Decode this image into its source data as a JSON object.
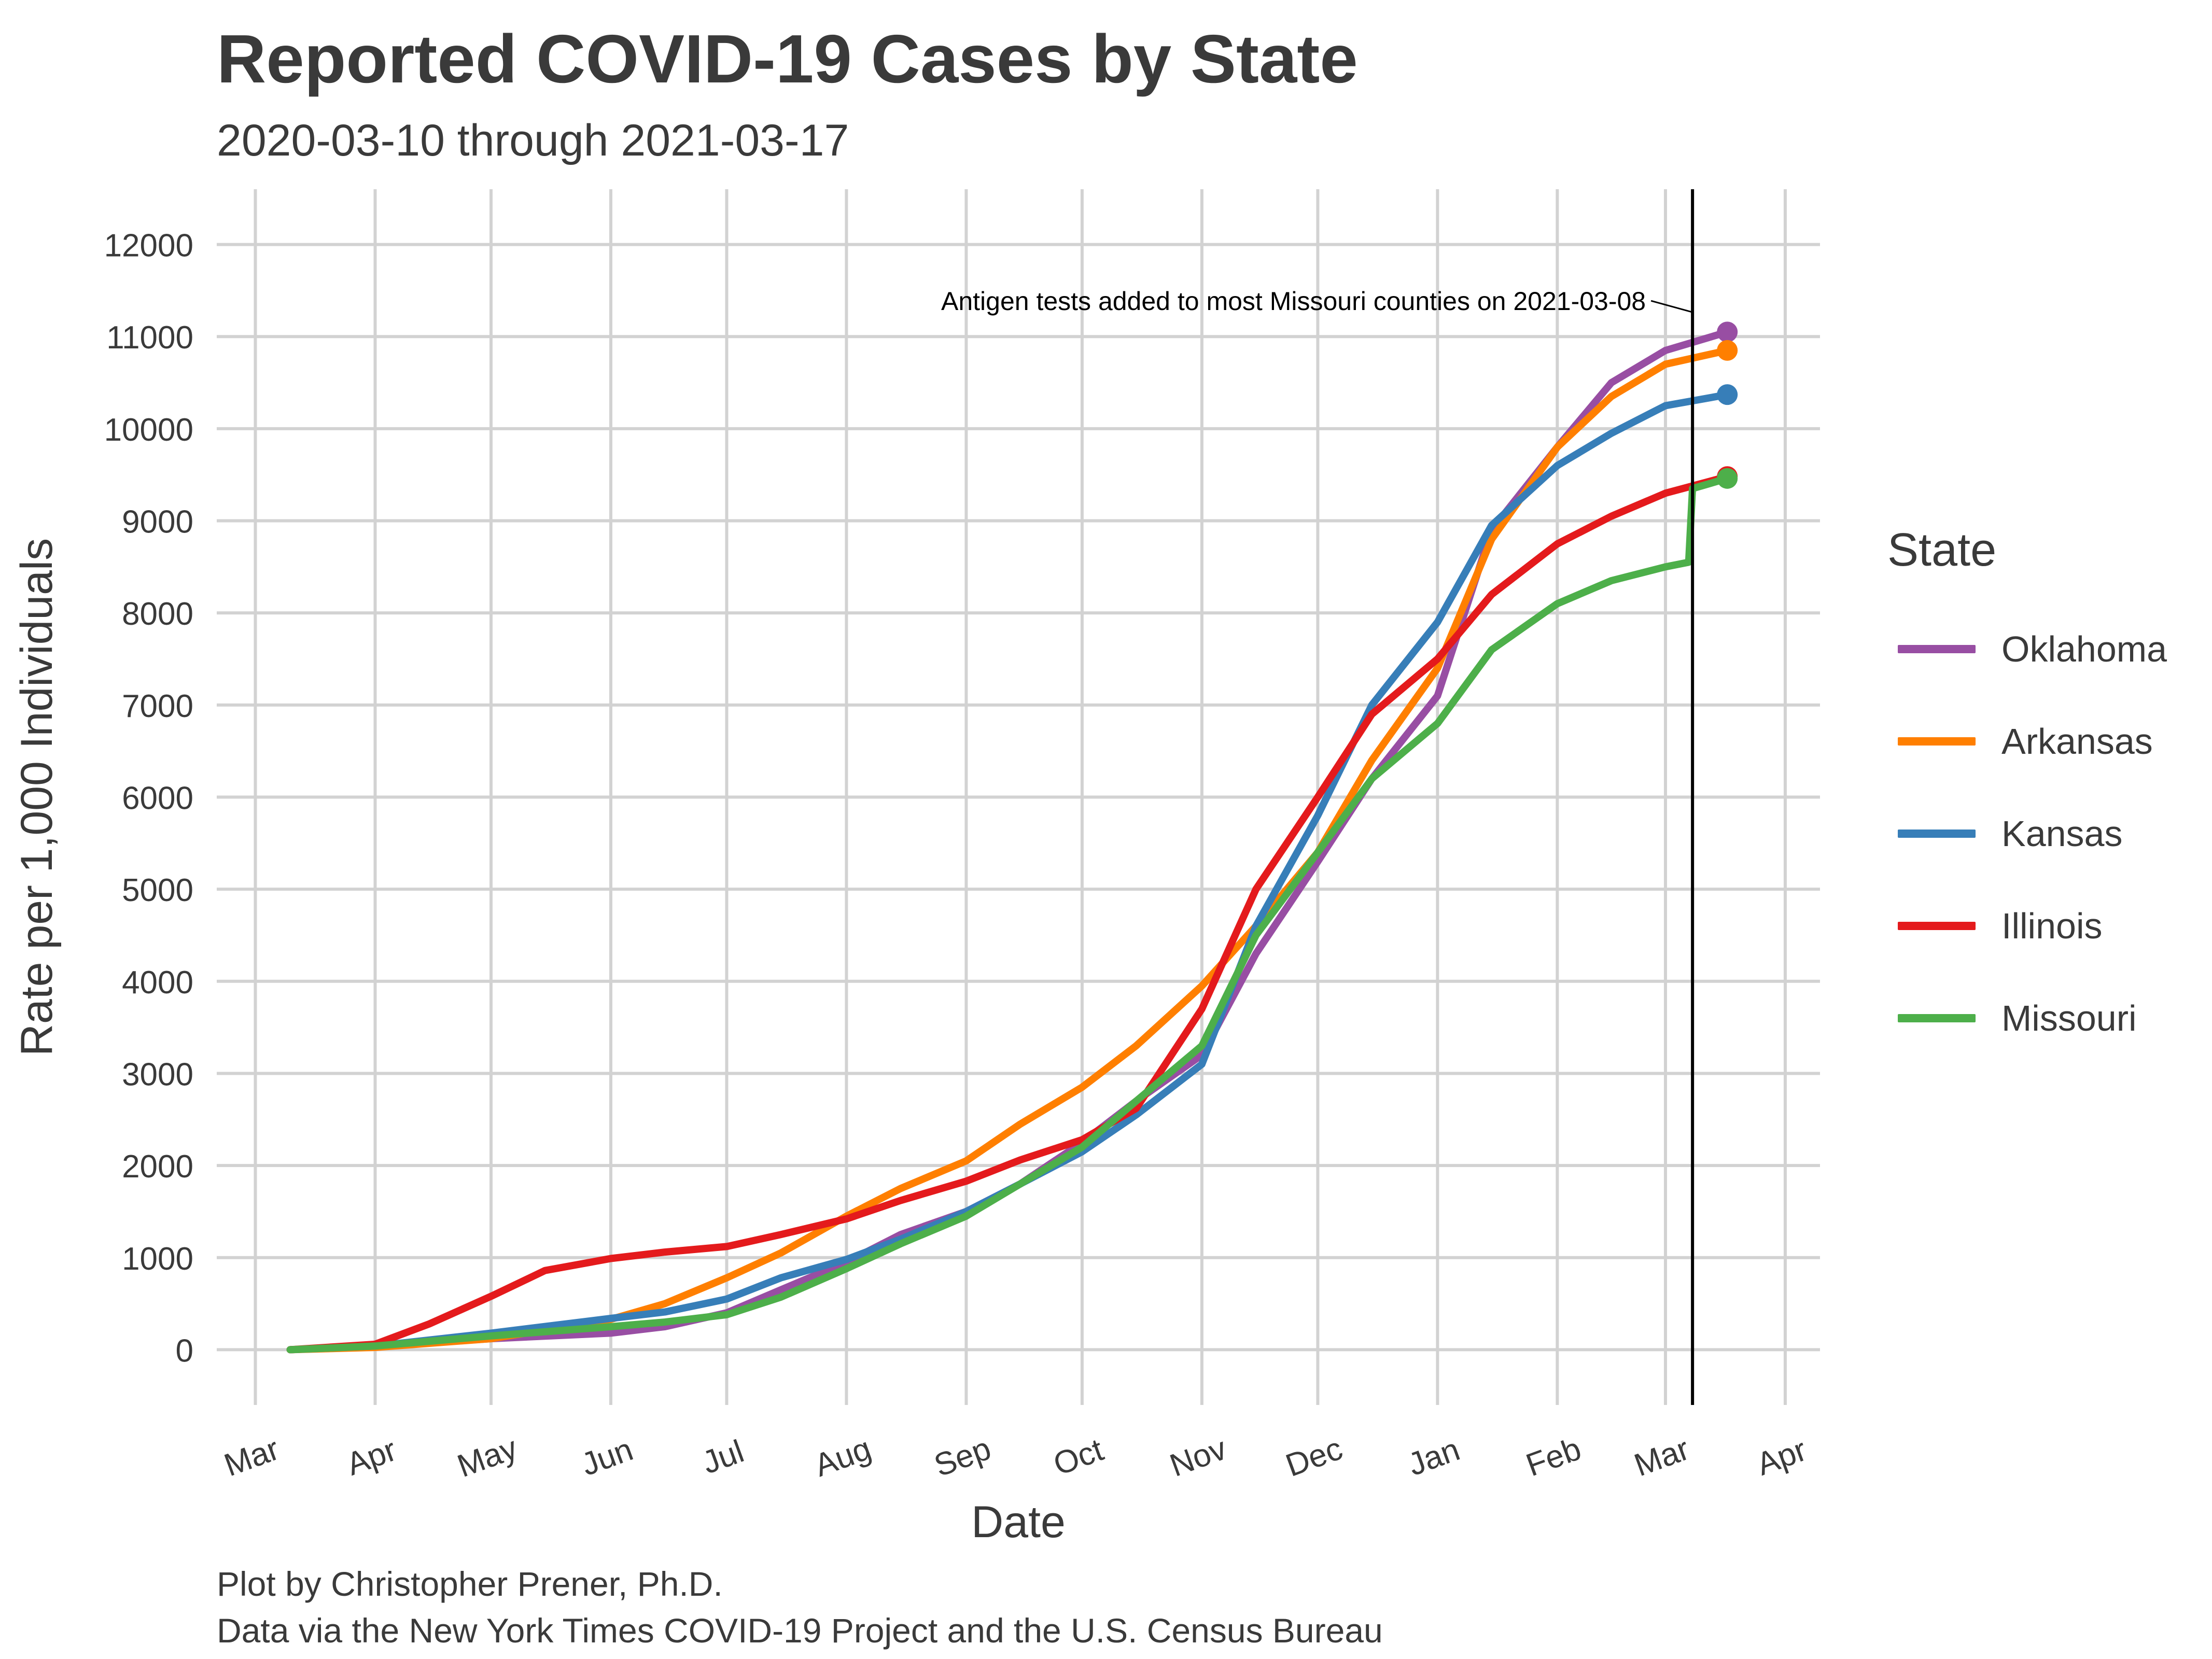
{
  "title": "Reported COVID-19 Cases by State",
  "subtitle": "2020-03-10 through 2021-03-17",
  "caption": {
    "line1": "Plot by Christopher Prener, Ph.D.",
    "line2": "Data via the New York Times COVID-19 Project and the U.S. Census Bureau"
  },
  "legend": {
    "title": "State",
    "placement": "right",
    "items": [
      {
        "label": "Oklahoma",
        "color": "#984ea3"
      },
      {
        "label": "Arkansas",
        "color": "#ff7f00"
      },
      {
        "label": "Kansas",
        "color": "#377eb8"
      },
      {
        "label": "Illinois",
        "color": "#e41a1c"
      },
      {
        "label": "Missouri",
        "color": "#4daf4a"
      }
    ]
  },
  "chart_data": {
    "type": "line",
    "title": "Reported COVID-19 Cases by State",
    "subtitle": "2020-03-10 through 2021-03-17",
    "xlabel": "Date",
    "ylabel": "Rate per 1,000 Individuals",
    "xlim": [
      "2020-02-20",
      "2021-04-10"
    ],
    "ylim": [
      -600,
      12600
    ],
    "grid": true,
    "x_ticks": [
      {
        "date": "2020-03-01",
        "label": "Mar"
      },
      {
        "date": "2020-04-01",
        "label": "Apr"
      },
      {
        "date": "2020-05-01",
        "label": "May"
      },
      {
        "date": "2020-06-01",
        "label": "Jun"
      },
      {
        "date": "2020-07-01",
        "label": "Jul"
      },
      {
        "date": "2020-08-01",
        "label": "Aug"
      },
      {
        "date": "2020-09-01",
        "label": "Sep"
      },
      {
        "date": "2020-10-01",
        "label": "Oct"
      },
      {
        "date": "2020-11-01",
        "label": "Nov"
      },
      {
        "date": "2020-12-01",
        "label": "Dec"
      },
      {
        "date": "2021-01-01",
        "label": "Jan"
      },
      {
        "date": "2021-02-01",
        "label": "Feb"
      },
      {
        "date": "2021-03-01",
        "label": "Mar"
      },
      {
        "date": "2021-04-01",
        "label": "Apr"
      }
    ],
    "y_ticks": [
      0,
      1000,
      2000,
      3000,
      4000,
      5000,
      6000,
      7000,
      8000,
      9000,
      10000,
      11000,
      12000
    ],
    "vline": {
      "date": "2021-03-08"
    },
    "annotation": {
      "text": "Antigen tests added to most Missouri counties on 2021-03-08",
      "date": "2021-03-08",
      "value": 11400
    },
    "series": [
      {
        "name": "Oklahoma",
        "color": "#984ea3",
        "x": [
          "2020-03-10",
          "2020-04-01",
          "2020-05-01",
          "2020-06-01",
          "2020-06-15",
          "2020-07-01",
          "2020-07-15",
          "2020-08-01",
          "2020-08-15",
          "2020-09-01",
          "2020-09-15",
          "2020-10-01",
          "2020-10-15",
          "2020-11-01",
          "2020-11-15",
          "2020-12-01",
          "2020-12-15",
          "2021-01-01",
          "2021-01-15",
          "2021-02-01",
          "2021-02-15",
          "2021-03-01",
          "2021-03-17"
        ],
        "y": [
          0,
          35,
          120,
          180,
          250,
          400,
          650,
          950,
          1250,
          1500,
          1800,
          2250,
          2700,
          3200,
          4300,
          5300,
          6200,
          7100,
          8900,
          9800,
          10500,
          10850,
          11050
        ]
      },
      {
        "name": "Arkansas",
        "color": "#ff7f00",
        "x": [
          "2020-03-10",
          "2020-04-01",
          "2020-05-01",
          "2020-06-01",
          "2020-06-15",
          "2020-07-01",
          "2020-07-15",
          "2020-08-01",
          "2020-08-15",
          "2020-09-01",
          "2020-09-15",
          "2020-10-01",
          "2020-10-15",
          "2020-11-01",
          "2020-11-15",
          "2020-12-01",
          "2020-12-15",
          "2021-01-01",
          "2021-01-15",
          "2021-02-01",
          "2021-02-15",
          "2021-03-01",
          "2021-03-17"
        ],
        "y": [
          0,
          25,
          120,
          330,
          500,
          780,
          1050,
          1450,
          1750,
          2050,
          2450,
          2850,
          3300,
          3950,
          4600,
          5400,
          6400,
          7400,
          8800,
          9800,
          10350,
          10700,
          10850
        ]
      },
      {
        "name": "Kansas",
        "color": "#377eb8",
        "x": [
          "2020-03-10",
          "2020-04-01",
          "2020-05-01",
          "2020-06-01",
          "2020-06-15",
          "2020-07-01",
          "2020-07-15",
          "2020-08-01",
          "2020-08-15",
          "2020-09-01",
          "2020-09-15",
          "2020-10-01",
          "2020-10-15",
          "2020-11-01",
          "2020-11-15",
          "2020-12-01",
          "2020-12-15",
          "2021-01-01",
          "2021-01-15",
          "2021-02-01",
          "2021-02-15",
          "2021-03-01",
          "2021-03-17"
        ],
        "y": [
          0,
          40,
          180,
          340,
          410,
          550,
          780,
          980,
          1200,
          1500,
          1800,
          2150,
          2550,
          3100,
          4600,
          5800,
          7000,
          7900,
          8950,
          9600,
          9950,
          10250,
          10370
        ]
      },
      {
        "name": "Illinois",
        "color": "#e41a1c",
        "x": [
          "2020-03-10",
          "2020-04-01",
          "2020-04-15",
          "2020-05-01",
          "2020-05-15",
          "2020-06-01",
          "2020-06-15",
          "2020-07-01",
          "2020-07-15",
          "2020-08-01",
          "2020-08-15",
          "2020-09-01",
          "2020-09-15",
          "2020-10-01",
          "2020-10-15",
          "2020-11-01",
          "2020-11-15",
          "2020-12-01",
          "2020-12-15",
          "2021-01-01",
          "2021-01-15",
          "2021-02-01",
          "2021-02-15",
          "2021-03-01",
          "2021-03-17"
        ],
        "y": [
          0,
          60,
          280,
          580,
          860,
          990,
          1060,
          1120,
          1250,
          1420,
          1620,
          1830,
          2060,
          2280,
          2620,
          3700,
          5000,
          6000,
          6900,
          7500,
          8200,
          8750,
          9050,
          9300,
          9480
        ]
      },
      {
        "name": "Missouri",
        "color": "#4daf4a",
        "x": [
          "2020-03-10",
          "2020-04-01",
          "2020-05-01",
          "2020-06-01",
          "2020-06-15",
          "2020-07-01",
          "2020-07-15",
          "2020-08-01",
          "2020-08-15",
          "2020-09-01",
          "2020-09-15",
          "2020-10-01",
          "2020-10-15",
          "2020-11-01",
          "2020-11-15",
          "2020-12-01",
          "2020-12-15",
          "2021-01-01",
          "2021-01-15",
          "2021-02-01",
          "2021-02-15",
          "2021-03-01",
          "2021-03-07",
          "2021-03-08",
          "2021-03-17"
        ],
        "y": [
          0,
          40,
          150,
          250,
          300,
          380,
          570,
          880,
          1150,
          1450,
          1800,
          2200,
          2700,
          3300,
          4500,
          5400,
          6200,
          6800,
          7600,
          8100,
          8350,
          8500,
          8550,
          9350,
          9460
        ]
      }
    ]
  }
}
